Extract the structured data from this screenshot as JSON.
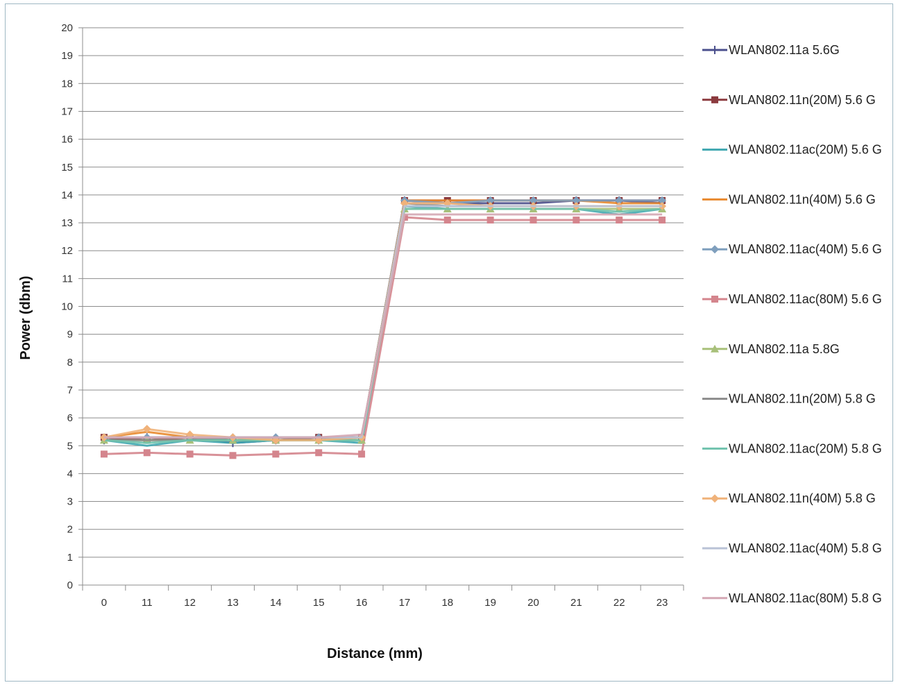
{
  "chart_data": {
    "type": "line",
    "title": "",
    "xlabel": "Distance (mm)",
    "ylabel": "Power (dbm)",
    "categories": [
      "0",
      "11",
      "12",
      "13",
      "14",
      "15",
      "16",
      "17",
      "18",
      "19",
      "20",
      "21",
      "22",
      "23"
    ],
    "ylim": [
      0,
      20
    ],
    "yticks": [
      "0",
      "1",
      "2",
      "3",
      "4",
      "5",
      "6",
      "7",
      "8",
      "9",
      "10",
      "11",
      "12",
      "13",
      "14",
      "15",
      "16",
      "17",
      "18",
      "19",
      "20"
    ],
    "grid": true,
    "legend_position": "right",
    "series": [
      {
        "name": "WLAN802.11a 5.6G",
        "color": "#4a4f8c",
        "marker": "cross",
        "values": [
          5.2,
          5.3,
          5.3,
          5.1,
          5.2,
          5.2,
          5.3,
          13.8,
          13.7,
          13.7,
          13.7,
          13.8,
          13.8,
          13.7
        ]
      },
      {
        "name": "WLAN802.11n(20M) 5.6 G",
        "color": "#8b3a3e",
        "marker": "square",
        "values": [
          5.3,
          5.2,
          5.3,
          5.2,
          5.2,
          5.3,
          5.3,
          13.8,
          13.8,
          13.8,
          13.8,
          13.8,
          13.8,
          13.8
        ]
      },
      {
        "name": "WLAN802.11ac(20M) 5.6 G",
        "color": "#3fa7b0",
        "marker": "none",
        "values": [
          5.2,
          5.0,
          5.2,
          5.1,
          5.2,
          5.2,
          5.1,
          13.6,
          13.5,
          13.5,
          13.5,
          13.5,
          13.3,
          13.5
        ]
      },
      {
        "name": "WLAN802.11n(40M) 5.6 G",
        "color": "#e8892f",
        "marker": "none",
        "values": [
          5.3,
          5.5,
          5.3,
          5.3,
          5.2,
          5.2,
          5.3,
          13.8,
          13.8,
          13.8,
          13.8,
          13.8,
          13.7,
          13.7
        ]
      },
      {
        "name": "WLAN802.11ac(40M) 5.6 G",
        "color": "#7f9fbd",
        "marker": "diamond",
        "values": [
          5.3,
          5.3,
          5.3,
          5.3,
          5.3,
          5.3,
          5.3,
          13.8,
          13.7,
          13.8,
          13.8,
          13.8,
          13.8,
          13.8
        ]
      },
      {
        "name": "WLAN802.11ac(80M) 5.6 G",
        "color": "#d4858d",
        "marker": "square",
        "values": [
          4.7,
          4.75,
          4.7,
          4.65,
          4.7,
          4.75,
          4.7,
          13.2,
          13.1,
          13.1,
          13.1,
          13.1,
          13.1,
          13.1
        ]
      },
      {
        "name": "WLAN802.11a 5.8G",
        "color": "#a8c07a",
        "marker": "triangle",
        "values": [
          5.2,
          5.2,
          5.2,
          5.2,
          5.2,
          5.2,
          5.2,
          13.5,
          13.5,
          13.5,
          13.5,
          13.5,
          13.5,
          13.5
        ]
      },
      {
        "name": "WLAN802.11n(20M) 5.8 G",
        "color": "#8c8c8c",
        "marker": "none",
        "values": [
          5.2,
          5.2,
          5.2,
          5.3,
          5.3,
          5.3,
          5.3,
          13.7,
          13.6,
          13.6,
          13.6,
          13.6,
          13.6,
          13.6
        ]
      },
      {
        "name": "WLAN802.11ac(20M) 5.8 G",
        "color": "#6fc2ad",
        "marker": "none",
        "values": [
          5.2,
          5.1,
          5.2,
          5.2,
          5.2,
          5.2,
          5.2,
          13.5,
          13.5,
          13.5,
          13.5,
          13.5,
          13.4,
          13.5
        ]
      },
      {
        "name": "WLAN802.11n(40M) 5.8 G",
        "color": "#f0b27a",
        "marker": "diamond",
        "values": [
          5.3,
          5.6,
          5.4,
          5.3,
          5.2,
          5.2,
          5.3,
          13.7,
          13.7,
          13.6,
          13.6,
          13.6,
          13.6,
          13.6
        ]
      },
      {
        "name": "WLAN802.11ac(40M) 5.8 G",
        "color": "#b9c2d6",
        "marker": "none",
        "values": [
          5.3,
          5.3,
          5.3,
          5.3,
          5.3,
          5.3,
          5.3,
          13.6,
          13.6,
          13.6,
          13.6,
          13.6,
          13.6,
          13.6
        ]
      },
      {
        "name": "WLAN802.11ac(80M) 5.8 G",
        "color": "#d4a7b4",
        "marker": "none",
        "values": [
          5.3,
          5.3,
          5.3,
          5.3,
          5.3,
          5.3,
          5.4,
          13.3,
          13.3,
          13.3,
          13.3,
          13.3,
          13.3,
          13.3
        ]
      }
    ]
  }
}
